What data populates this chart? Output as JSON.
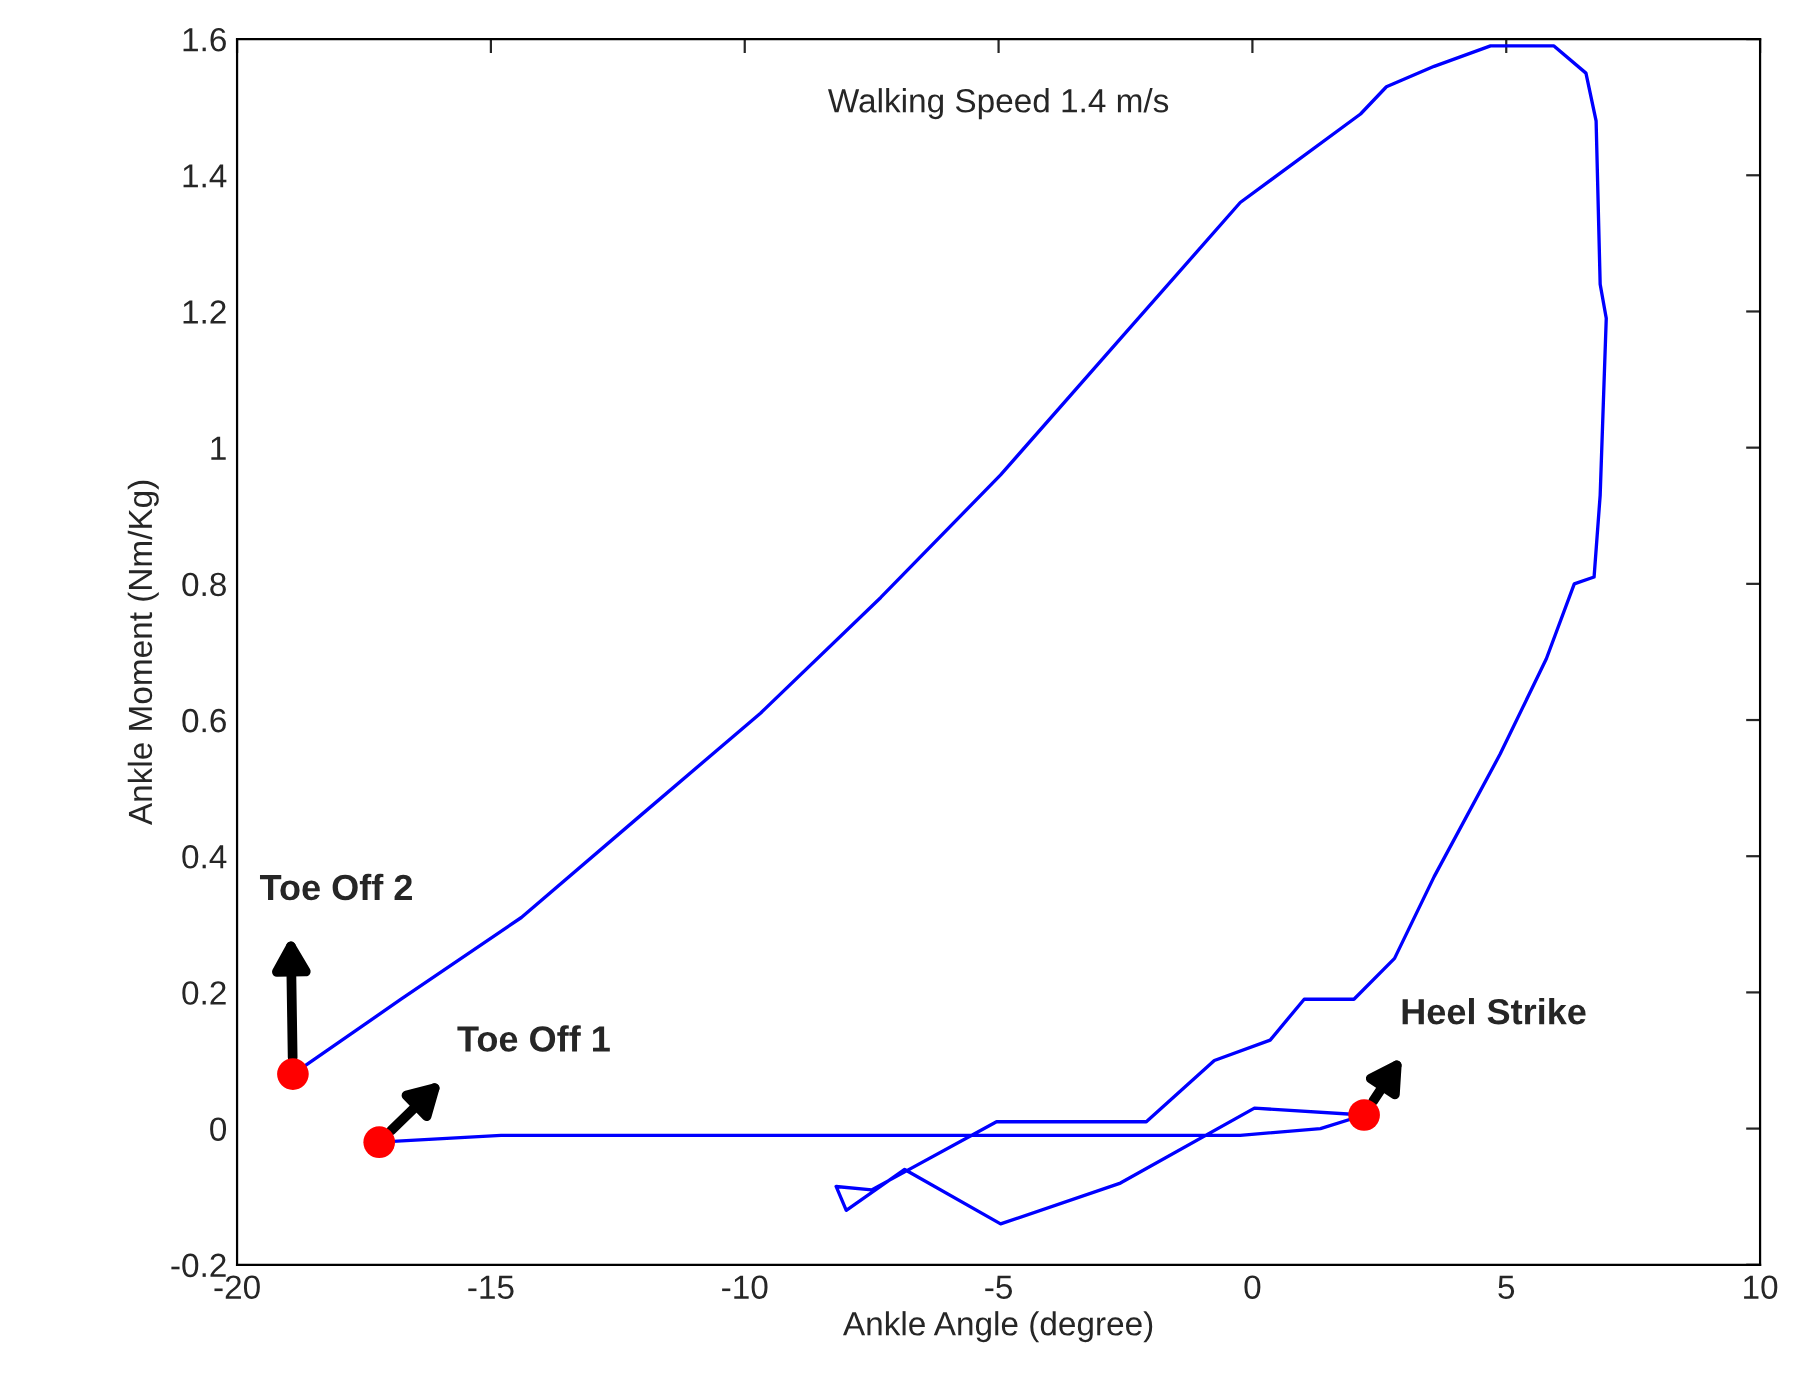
{
  "chart_data": {
    "type": "line",
    "title": "Walking Speed 1.4 m/s",
    "xlabel": "Ankle Angle (degree)",
    "ylabel": "Ankle Moment (Nm/Kg)",
    "xlim": [
      -20,
      10
    ],
    "ylim": [
      -0.2,
      1.6
    ],
    "xticks": [
      -20,
      -15,
      -10,
      -5,
      0,
      5,
      10
    ],
    "yticks": [
      -0.2,
      0,
      0.2,
      0.4,
      0.6,
      0.8,
      1,
      1.2,
      1.4,
      1.6
    ],
    "grid": false,
    "legend": false,
    "series": [
      {
        "color": "#0000ff",
        "marker": "none",
        "x": [
          -17.2,
          -14.8,
          -5.0,
          -0.24,
          1.34,
          2.2,
          0.04,
          -2.6,
          -4.96,
          -6.85,
          -8.0,
          -8.2,
          -7.5,
          -5.04,
          -2.09,
          -0.75,
          0.35,
          1.02,
          2.0,
          2.8,
          3.58,
          4.88,
          5.79,
          6.34,
          6.73,
          6.85,
          6.97,
          6.85,
          6.77,
          6.57,
          5.94,
          4.69,
          3.58,
          2.64,
          2.13,
          -0.24,
          -2.6,
          -4.96,
          -7.32,
          -9.69,
          -12.05,
          -14.4,
          -16.77,
          -18.9
        ],
        "values": [
          -0.02,
          -0.01,
          -0.01,
          -0.01,
          0.0,
          0.02,
          0.03,
          -0.08,
          -0.14,
          -0.06,
          -0.12,
          -0.085,
          -0.09,
          0.01,
          0.01,
          0.1,
          0.13,
          0.19,
          0.19,
          0.25,
          0.37,
          0.55,
          0.69,
          0.8,
          0.81,
          0.93,
          1.19,
          1.24,
          1.48,
          1.55,
          1.59,
          1.59,
          1.56,
          1.53,
          1.49,
          1.36,
          1.16,
          0.96,
          0.78,
          0.61,
          0.46,
          0.31,
          0.19,
          0.08
        ]
      },
      {
        "type": "scatter",
        "color": "#ff0000",
        "marker": "circle",
        "x": [
          -18.9,
          -17.2,
          2.2
        ],
        "values": [
          0.08,
          -0.02,
          0.02
        ]
      }
    ],
    "annotations": [
      {
        "text": "Toe Off 2",
        "x": -18.9,
        "y": 0.08
      },
      {
        "text": "Toe Off 1",
        "x": -17.2,
        "y": -0.02
      },
      {
        "text": "Heel Strike",
        "x": 2.2,
        "y": 0.02
      }
    ]
  }
}
